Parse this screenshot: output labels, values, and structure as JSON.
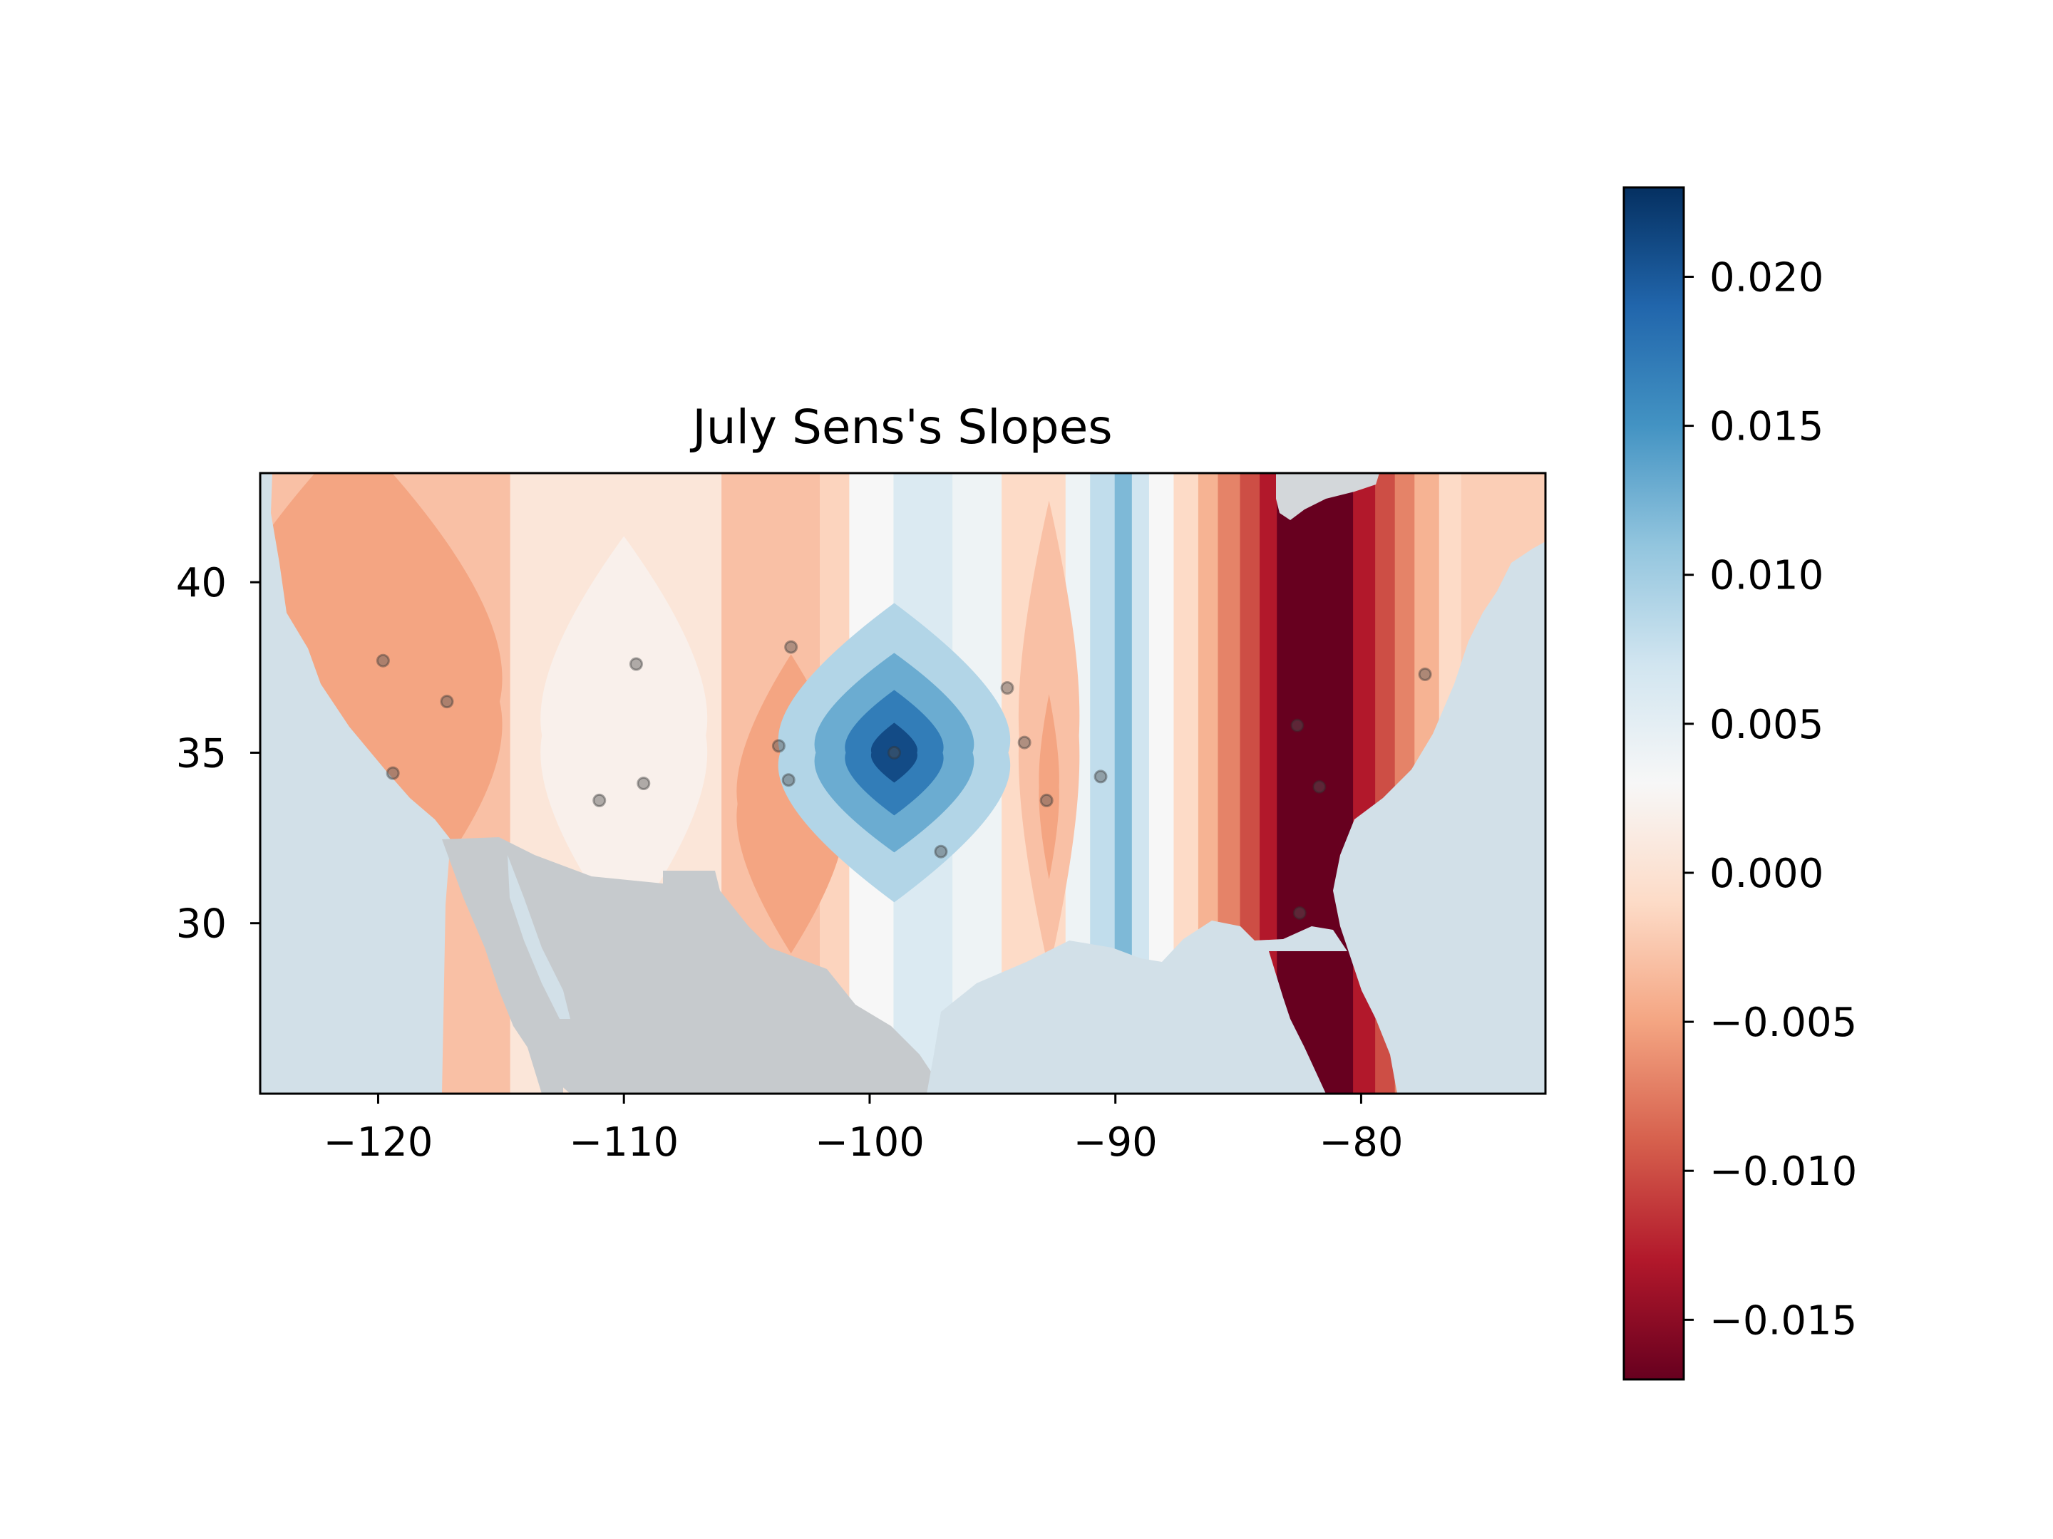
{
  "chart_data": {
    "type": "heatmap",
    "title": "July Sens's Slopes",
    "xlabel": "",
    "ylabel": "",
    "xlim": [
      -124.8,
      -72.5
    ],
    "ylim": [
      25.0,
      43.2
    ],
    "xticks": [
      -120,
      -110,
      -100,
      -90,
      -80
    ],
    "xtick_labels": [
      "−120",
      "−110",
      "−100",
      "−90",
      "−80"
    ],
    "yticks": [
      30,
      35,
      40
    ],
    "ytick_labels": [
      "30",
      "35",
      "40"
    ],
    "grid": false,
    "colorbar": {
      "range": [
        -0.017,
        0.023
      ],
      "ticks": [
        0.02,
        0.015,
        0.01,
        0.005,
        0.0,
        -0.005,
        -0.01,
        -0.015
      ],
      "tick_labels": [
        "0.020",
        "0.015",
        "0.010",
        "0.005",
        "0.000",
        "−0.005",
        "−0.010",
        "−0.015"
      ],
      "colormap": "RdBu",
      "colors": [
        "#67001f",
        "#b2182b",
        "#d6604d",
        "#f4a582",
        "#fddbc7",
        "#f7f7f7",
        "#d1e5f0",
        "#92c5de",
        "#4393c3",
        "#2166ac",
        "#053061"
      ]
    },
    "longitude_bands": [
      {
        "x": [
          -124.8,
          -114.6
        ],
        "value": -0.003
      },
      {
        "x": [
          -114.6,
          -106.0
        ],
        "value": 0.0005
      },
      {
        "x": [
          -106.0,
          -102.0
        ],
        "value": -0.003
      },
      {
        "x": [
          -102.0,
          -100.8
        ],
        "value": -0.0015
      },
      {
        "x": [
          -100.8,
          -99.0
        ],
        "value": 0.003
      },
      {
        "x": [
          -99.0,
          -96.6
        ],
        "value": 0.006
      },
      {
        "x": [
          -96.6,
          -94.6
        ],
        "value": 0.004
      },
      {
        "x": [
          -94.6,
          -92.0
        ],
        "value": -0.001
      },
      {
        "x": [
          -92.0,
          -91.0
        ],
        "value": 0.004
      },
      {
        "x": [
          -91.0,
          -90.0
        ],
        "value": 0.008
      },
      {
        "x": [
          -90.0,
          -89.3
        ],
        "value": 0.012
      },
      {
        "x": [
          -89.3,
          -88.6
        ],
        "value": 0.007
      },
      {
        "x": [
          -88.6,
          -87.6
        ],
        "value": 0.003
      },
      {
        "x": [
          -87.6,
          -86.6
        ],
        "value": -0.001
      },
      {
        "x": [
          -86.6,
          -85.8
        ],
        "value": -0.004
      },
      {
        "x": [
          -85.8,
          -84.9
        ],
        "value": -0.007
      },
      {
        "x": [
          -84.9,
          -84.1
        ],
        "value": -0.01
      },
      {
        "x": [
          -84.1,
          -83.4
        ],
        "value": -0.013
      },
      {
        "x": [
          -83.4,
          -80.3
        ],
        "value": -0.017
      },
      {
        "x": [
          -80.3,
          -79.4
        ],
        "value": -0.013
      },
      {
        "x": [
          -79.4,
          -78.6
        ],
        "value": -0.01
      },
      {
        "x": [
          -78.6,
          -77.8
        ],
        "value": -0.007
      },
      {
        "x": [
          -77.8,
          -76.8
        ],
        "value": -0.004
      },
      {
        "x": [
          -76.8,
          -75.9
        ],
        "value": -0.001
      },
      {
        "x": [
          -75.9,
          -72.5
        ],
        "value": -0.002
      }
    ],
    "blobs": [
      {
        "lon": -121.0,
        "lat": 36.5,
        "value": -0.005
      },
      {
        "lon": -110.0,
        "lat": 35.5,
        "value": 0.002
      },
      {
        "lon": -103.2,
        "lat": 33.5,
        "value": -0.005
      },
      {
        "lon": -99.0,
        "lat": 35.0,
        "value": 0.009
      },
      {
        "lon": -99.0,
        "lat": 35.0,
        "value": 0.013
      },
      {
        "lon": -99.0,
        "lat": 35.0,
        "value": 0.017
      },
      {
        "lon": -99.0,
        "lat": 35.0,
        "value": 0.021
      },
      {
        "lon": -92.7,
        "lat": 35.5,
        "value": -0.003
      },
      {
        "lon": -92.7,
        "lat": 34.0,
        "value": -0.005
      }
    ],
    "stations": [
      {
        "lon": -119.8,
        "lat": 37.7
      },
      {
        "lon": -117.2,
        "lat": 36.5
      },
      {
        "lon": -119.4,
        "lat": 34.4
      },
      {
        "lon": -109.5,
        "lat": 37.6
      },
      {
        "lon": -109.2,
        "lat": 34.1
      },
      {
        "lon": -111.0,
        "lat": 33.6
      },
      {
        "lon": -103.2,
        "lat": 38.1
      },
      {
        "lon": -103.7,
        "lat": 35.2
      },
      {
        "lon": -103.3,
        "lat": 34.2
      },
      {
        "lon": -99.0,
        "lat": 35.0
      },
      {
        "lon": -97.1,
        "lat": 32.1
      },
      {
        "lon": -94.4,
        "lat": 36.9
      },
      {
        "lon": -93.7,
        "lat": 35.3
      },
      {
        "lon": -92.8,
        "lat": 33.6
      },
      {
        "lon": -90.6,
        "lat": 34.3
      },
      {
        "lon": -82.6,
        "lat": 35.8
      },
      {
        "lon": -81.7,
        "lat": 34.0
      },
      {
        "lon": -82.5,
        "lat": 30.3
      },
      {
        "lon": -77.4,
        "lat": 37.3
      }
    ],
    "land_colors": {
      "ocean": "#d2e0e8",
      "mexico": "#c6cacd",
      "lake": "#d3d7da"
    }
  }
}
